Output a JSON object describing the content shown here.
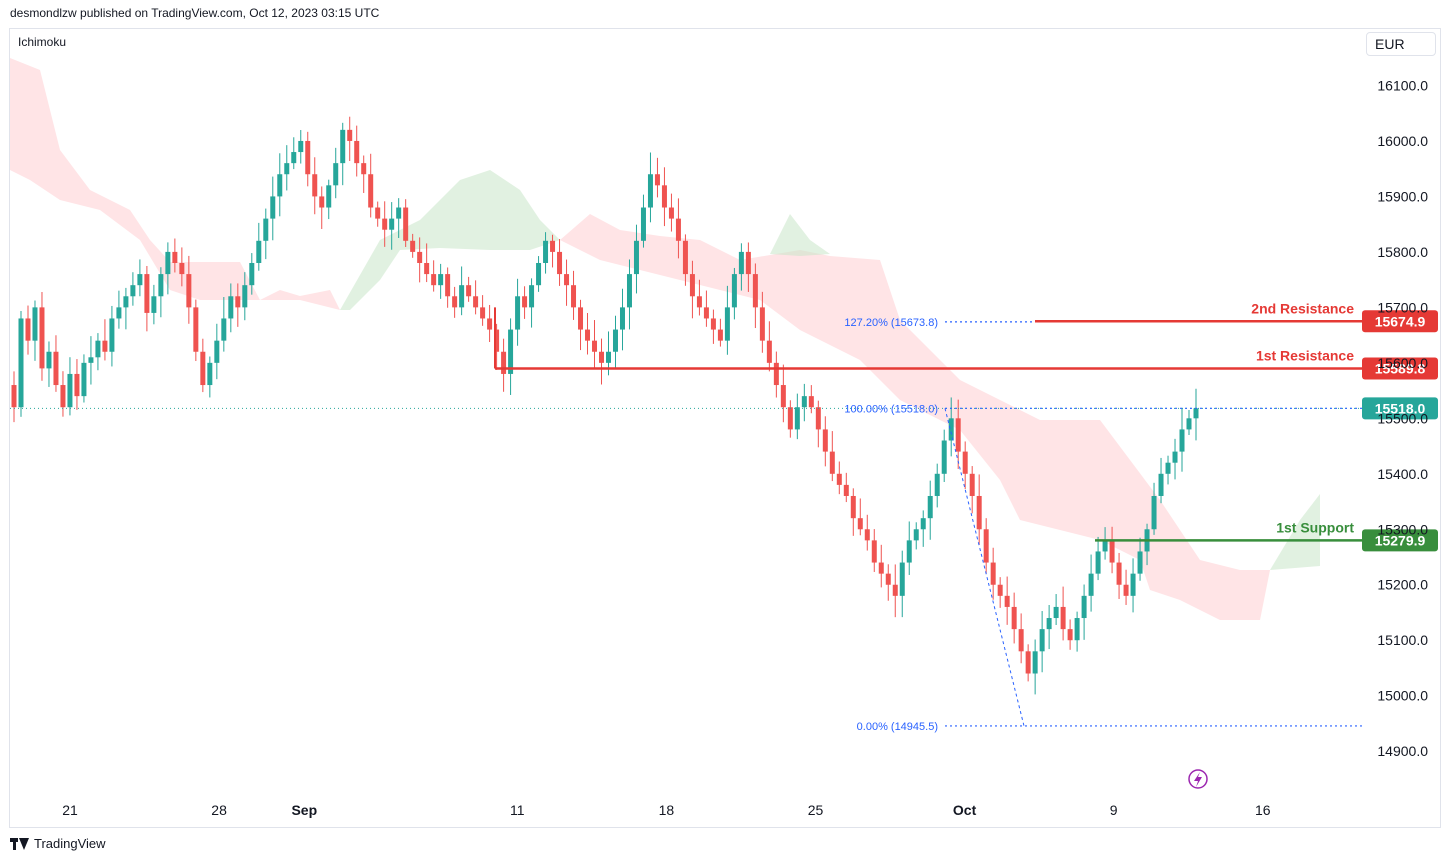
{
  "header": {
    "published": "desmondlzw published on TradingView.com, Oct 12, 2023 03:15 UTC"
  },
  "indicator": {
    "name": "Ichimoku"
  },
  "currency": "EUR",
  "footer": {
    "brand": "TradingView"
  },
  "colors": {
    "up": "#26a69a",
    "down": "#ef5350",
    "resistance": "#e53935",
    "support": "#388e3c",
    "cloud_bull": "#c8e6c9",
    "cloud_bear": "#ffcdd2",
    "fib": "#2962ff",
    "current": "#26a69a"
  },
  "chart_data": {
    "type": "candlestick",
    "ylim": [
      14830,
      16200
    ],
    "y_ticks": [
      14900,
      15000,
      15100,
      15200,
      15300,
      15400,
      15500,
      15600,
      15700,
      15800,
      15900,
      16000,
      16100
    ],
    "y_tick_labels": [
      "14900.0",
      "15000.0",
      "15100.0",
      "15200.0",
      "15300.0",
      "15400.0",
      "15500.0",
      "15600.0",
      "15700.0",
      "15800.0",
      "15900.0",
      "16000.0",
      "16100.0"
    ],
    "x_labels": [
      {
        "label": "21",
        "date": "2023-08-21"
      },
      {
        "label": "28",
        "date": "2023-08-28"
      },
      {
        "label": "Sep",
        "date": "2023-09-01"
      },
      {
        "label": "11",
        "date": "2023-09-11"
      },
      {
        "label": "18",
        "date": "2023-09-18"
      },
      {
        "label": "25",
        "date": "2023-09-25"
      },
      {
        "label": "Oct",
        "date": "2023-10-02"
      },
      {
        "label": "9",
        "date": "2023-10-09"
      },
      {
        "label": "16",
        "date": "2023-10-16"
      }
    ],
    "levels": [
      {
        "name": "2nd Resistance",
        "value": "15674.9",
        "price": 15674.9,
        "kind": "resistance"
      },
      {
        "name": "1st Resistance",
        "value": "15589.8",
        "price": 15589.8,
        "kind": "resistance"
      },
      {
        "name": "",
        "value": "15518.0",
        "price": 15518.0,
        "kind": "current"
      },
      {
        "name": "1st Support",
        "value": "15279.9",
        "price": 15279.9,
        "kind": "support"
      }
    ],
    "fib_levels": [
      {
        "label": "127.20% (15673.8)",
        "price": 15673.8
      },
      {
        "label": "100.00% (15518.0)",
        "price": 15518.0
      },
      {
        "label": "0.00% (14945.5)",
        "price": 14945.5
      }
    ],
    "candle_closes": [
      15520,
      15680,
      15640,
      15700,
      15590,
      15620,
      15560,
      15520,
      15580,
      15540,
      15600,
      15610,
      15640,
      15620,
      15680,
      15700,
      15720,
      15740,
      15760,
      15690,
      15720,
      15760,
      15800,
      15780,
      15760,
      15700,
      15620,
      15560,
      15600,
      15640,
      15680,
      15720,
      15700,
      15740,
      15780,
      15820,
      15860,
      15900,
      15940,
      15960,
      15980,
      16000,
      15940,
      15900,
      15880,
      15920,
      15960,
      16020,
      16000,
      15960,
      15940,
      15880,
      15860,
      15840,
      15860,
      15880,
      15820,
      15800,
      15780,
      15760,
      15740,
      15760,
      15720,
      15700,
      15740,
      15720,
      15700,
      15680,
      15660,
      15620,
      15580,
      15660,
      15720,
      15700,
      15740,
      15780,
      15820,
      15800,
      15760,
      15740,
      15700,
      15660,
      15640,
      15620,
      15600,
      15620,
      15660,
      15700,
      15760,
      15820,
      15880,
      15940,
      15920,
      15880,
      15860,
      15820,
      15760,
      15720,
      15700,
      15680,
      15660,
      15640,
      15700,
      15760,
      15800,
      15760,
      15700,
      15640,
      15600,
      15560,
      15520,
      15480,
      15520,
      15540,
      15520,
      15480,
      15440,
      15400,
      15380,
      15360,
      15320,
      15300,
      15280,
      15240,
      15220,
      15200,
      15180,
      15240,
      15280,
      15300,
      15320,
      15360,
      15400,
      15460,
      15500,
      15440,
      15400,
      15360,
      15300,
      15240,
      15200,
      15180,
      15160,
      15120,
      15080,
      15040,
      15080,
      15120,
      15140,
      15160,
      15120,
      15100,
      15140,
      15180,
      15220,
      15260,
      15280,
      15240,
      15200,
      15180,
      15220,
      15260,
      15300,
      15360,
      15400,
      15420,
      15440,
      15480,
      15500,
      15518
    ]
  }
}
